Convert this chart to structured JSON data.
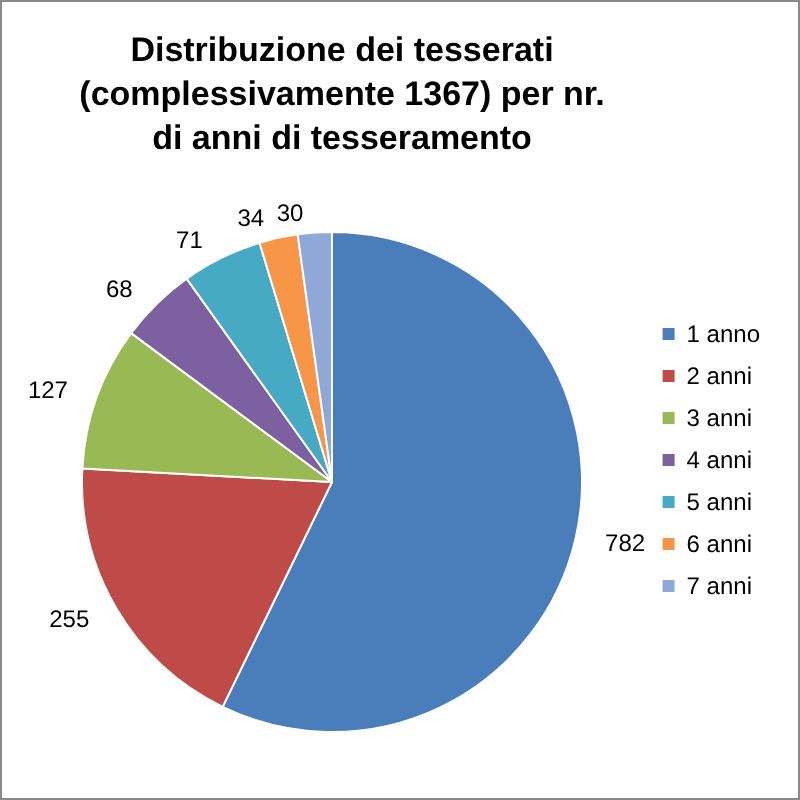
{
  "chart_data": {
    "type": "pie",
    "title": "Distribuzione dei tesserati\n(complessivamente 1367) per nr.\ndi anni di tesseramento",
    "categories": [
      "1 anno",
      "2 anni",
      "3 anni",
      "4 anni",
      "5 anni",
      "6 anni",
      "7 anni"
    ],
    "values": [
      782,
      255,
      127,
      68,
      71,
      34,
      30
    ],
    "colors": [
      "#4a7ebb",
      "#be4b48",
      "#98b954",
      "#7d60a0",
      "#46aac5",
      "#f79646",
      "#8fa8d8"
    ],
    "data_labels": true,
    "legend": "right"
  }
}
